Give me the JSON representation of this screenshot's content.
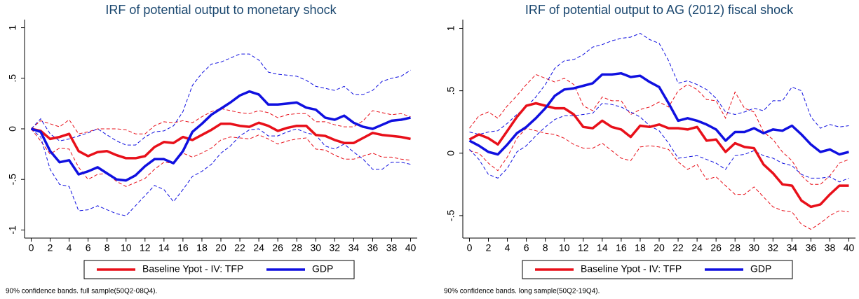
{
  "chart_data": [
    {
      "type": "line",
      "title": "IRF of potential output to monetary shock",
      "caption": "90% confidence bands. full sample(50Q2-08Q4).",
      "x": [
        0,
        1,
        2,
        3,
        4,
        5,
        6,
        7,
        8,
        9,
        10,
        11,
        12,
        13,
        14,
        15,
        16,
        17,
        18,
        19,
        20,
        21,
        22,
        23,
        24,
        25,
        26,
        27,
        28,
        29,
        30,
        31,
        32,
        33,
        34,
        35,
        36,
        37,
        38,
        39,
        40
      ],
      "xlim": [
        -0.7,
        40.7
      ],
      "xticks": [
        0,
        2,
        4,
        6,
        8,
        10,
        12,
        14,
        16,
        18,
        20,
        22,
        24,
        26,
        28,
        30,
        32,
        34,
        36,
        38,
        40
      ],
      "ylim": [
        -1.08,
        1.08
      ],
      "yticks": [
        -1,
        {
          "value": -0.5,
          "label": "-.5"
        },
        0,
        {
          "value": 0.5,
          "label": ".5"
        },
        1
      ],
      "series": [
        {
          "name": "Baseline Ypot - IV: TFP",
          "color": "#e8101a",
          "values": [
            0,
            -0.02,
            -0.1,
            -0.08,
            -0.05,
            -0.22,
            -0.27,
            -0.23,
            -0.22,
            -0.26,
            -0.29,
            -0.29,
            -0.27,
            -0.18,
            -0.13,
            -0.14,
            -0.08,
            -0.11,
            -0.06,
            -0.01,
            0.05,
            0.05,
            0.03,
            0.02,
            0.06,
            0.03,
            -0.02,
            0.01,
            0.03,
            0.03,
            -0.06,
            -0.07,
            -0.11,
            -0.14,
            -0.14,
            -0.09,
            -0.04,
            -0.06,
            -0.07,
            -0.08,
            -0.1
          ],
          "upper": [
            0,
            0.08,
            0.05,
            0.02,
            0.09,
            -0.05,
            -0.03,
            0,
            0,
            0,
            -0.01,
            -0.05,
            -0.05,
            0.03,
            0.07,
            0.06,
            0.08,
            0.06,
            0.12,
            0.17,
            0.2,
            0.18,
            0.16,
            0.15,
            0.18,
            0.16,
            0.11,
            0.14,
            0.15,
            0.15,
            0.07,
            0.07,
            0.04,
            0.02,
            0.02,
            0.08,
            0.18,
            0.16,
            0.14,
            0.15,
            0.12
          ],
          "lower": [
            0,
            -0.12,
            -0.25,
            -0.19,
            -0.2,
            -0.38,
            -0.5,
            -0.45,
            -0.44,
            -0.52,
            -0.57,
            -0.53,
            -0.49,
            -0.4,
            -0.33,
            -0.34,
            -0.24,
            -0.28,
            -0.24,
            -0.19,
            -0.11,
            -0.08,
            -0.09,
            -0.1,
            -0.06,
            -0.1,
            -0.15,
            -0.12,
            -0.1,
            -0.09,
            -0.2,
            -0.21,
            -0.26,
            -0.3,
            -0.3,
            -0.27,
            -0.24,
            -0.28,
            -0.28,
            -0.3,
            -0.31
          ]
        },
        {
          "name": "GDP",
          "color": "#1010e0",
          "values": [
            0,
            -0.03,
            -0.22,
            -0.33,
            -0.31,
            -0.45,
            -0.42,
            -0.38,
            -0.44,
            -0.5,
            -0.51,
            -0.46,
            -0.37,
            -0.3,
            -0.3,
            -0.34,
            -0.22,
            -0.03,
            0.05,
            0.14,
            0.2,
            0.26,
            0.33,
            0.37,
            0.34,
            0.24,
            0.24,
            0.25,
            0.26,
            0.21,
            0.19,
            0.11,
            0.09,
            0.13,
            0.06,
            0.02,
            0,
            0.04,
            0.08,
            0.09,
            0.11
          ],
          "upper": [
            0,
            0.1,
            -0.05,
            -0.12,
            -0.1,
            -0.07,
            -0.04,
            0,
            -0.06,
            -0.12,
            -0.16,
            -0.16,
            -0.08,
            -0.03,
            -0.02,
            0.03,
            0.17,
            0.43,
            0.55,
            0.64,
            0.66,
            0.7,
            0.74,
            0.74,
            0.68,
            0.56,
            0.54,
            0.53,
            0.52,
            0.48,
            0.42,
            0.4,
            0.38,
            0.42,
            0.34,
            0.34,
            0.38,
            0.47,
            0.5,
            0.52,
            0.58
          ],
          "lower": [
            0,
            -0.08,
            -0.4,
            -0.55,
            -0.57,
            -0.81,
            -0.8,
            -0.76,
            -0.8,
            -0.84,
            -0.86,
            -0.76,
            -0.66,
            -0.56,
            -0.6,
            -0.72,
            -0.6,
            -0.47,
            -0.42,
            -0.35,
            -0.24,
            -0.17,
            -0.07,
            -0.01,
            0,
            -0.07,
            -0.07,
            -0.03,
            0,
            -0.04,
            -0.06,
            -0.17,
            -0.2,
            -0.15,
            -0.23,
            -0.3,
            -0.4,
            -0.4,
            -0.33,
            -0.33,
            -0.35
          ]
        }
      ]
    },
    {
      "type": "line",
      "title": "IRF of potential output to AG (2012) fiscal shock",
      "caption": "90% confidence bands. long sample(50Q2-19Q4).",
      "x": [
        0,
        1,
        2,
        3,
        4,
        5,
        6,
        7,
        8,
        9,
        10,
        11,
        12,
        13,
        14,
        15,
        16,
        17,
        18,
        19,
        20,
        21,
        22,
        23,
        24,
        25,
        26,
        27,
        28,
        29,
        30,
        31,
        32,
        33,
        34,
        35,
        36,
        37,
        38,
        39,
        40
      ],
      "xlim": [
        -0.7,
        40.7
      ],
      "xticks": [
        0,
        2,
        4,
        6,
        8,
        10,
        12,
        14,
        16,
        18,
        20,
        22,
        24,
        26,
        28,
        30,
        32,
        34,
        36,
        38,
        40
      ],
      "ylim": [
        -0.68,
        1.07
      ],
      "yticks": [
        {
          "value": -0.5,
          "label": "-.5"
        },
        0,
        {
          "value": 0.5,
          "label": ".5"
        },
        1
      ],
      "series": [
        {
          "name": "Baseline Ypot - IV: TFP",
          "color": "#e8101a",
          "values": [
            0.11,
            0.15,
            0.12,
            0.07,
            0.18,
            0.29,
            0.38,
            0.4,
            0.38,
            0.36,
            0.36,
            0.31,
            0.21,
            0.2,
            0.26,
            0.21,
            0.19,
            0.13,
            0.22,
            0.21,
            0.23,
            0.2,
            0.2,
            0.19,
            0.21,
            0.1,
            0.11,
            0.01,
            0.08,
            0.05,
            0.04,
            -0.09,
            -0.16,
            -0.25,
            -0.26,
            -0.38,
            -0.43,
            -0.41,
            -0.33,
            -0.26,
            -0.26
          ],
          "upper": [
            0.2,
            0.3,
            0.33,
            0.28,
            0.38,
            0.46,
            0.55,
            0.63,
            0.6,
            0.57,
            0.6,
            0.55,
            0.38,
            0.34,
            0.45,
            0.42,
            0.42,
            0.31,
            0.35,
            0.37,
            0.41,
            0.37,
            0.5,
            0.55,
            0.51,
            0.43,
            0.42,
            0.28,
            0.49,
            0.36,
            0.33,
            0.17,
            0.11,
            0.01,
            -0.06,
            -0.18,
            -0.25,
            -0.25,
            -0.18,
            -0.08,
            -0.05
          ],
          "lower": [
            0.02,
            0,
            -0.08,
            -0.14,
            -0.03,
            0.12,
            0.2,
            0.18,
            0.16,
            0.15,
            0.12,
            0.07,
            0.04,
            0.04,
            0.08,
            0.02,
            -0.04,
            -0.06,
            0.05,
            0.06,
            0.05,
            0.03,
            -0.07,
            -0.13,
            -0.09,
            -0.21,
            -0.19,
            -0.26,
            -0.33,
            -0.33,
            -0.27,
            -0.35,
            -0.43,
            -0.46,
            -0.47,
            -0.57,
            -0.61,
            -0.56,
            -0.5,
            -0.46,
            -0.47
          ]
        },
        {
          "name": "GDP",
          "color": "#1010e0",
          "values": [
            0.1,
            0.06,
            0.01,
            -0.01,
            0.07,
            0.16,
            0.21,
            0.28,
            0.36,
            0.46,
            0.51,
            0.52,
            0.54,
            0.56,
            0.63,
            0.63,
            0.64,
            0.61,
            0.62,
            0.57,
            0.53,
            0.4,
            0.26,
            0.28,
            0.26,
            0.23,
            0.19,
            0.1,
            0.17,
            0.17,
            0.2,
            0.16,
            0.19,
            0.18,
            0.22,
            0.15,
            0.07,
            0.01,
            0.03,
            -0.01,
            0.01
          ],
          "upper": [
            0.17,
            0.15,
            0.17,
            0.18,
            0.24,
            0.31,
            0.37,
            0.45,
            0.55,
            0.68,
            0.74,
            0.75,
            0.79,
            0.85,
            0.87,
            0.9,
            0.92,
            0.93,
            0.96,
            0.91,
            0.88,
            0.74,
            0.56,
            0.58,
            0.55,
            0.51,
            0.44,
            0.33,
            0.31,
            0.33,
            0.36,
            0.34,
            0.42,
            0.42,
            0.53,
            0.5,
            0.29,
            0.2,
            0.23,
            0.21,
            0.22
          ],
          "lower": [
            0.03,
            -0.05,
            -0.17,
            -0.2,
            -0.12,
            0.01,
            0.06,
            0.14,
            0.21,
            0.27,
            0.3,
            0.3,
            0.31,
            0.32,
            0.4,
            0.39,
            0.37,
            0.33,
            0.29,
            0.22,
            0.18,
            0.08,
            -0.04,
            -0.03,
            -0.02,
            -0.05,
            -0.08,
            -0.13,
            -0.02,
            -0.01,
            0.02,
            -0.02,
            -0.04,
            -0.08,
            -0.1,
            -0.17,
            -0.2,
            -0.2,
            -0.19,
            -0.23,
            -0.2
          ]
        }
      ]
    }
  ]
}
